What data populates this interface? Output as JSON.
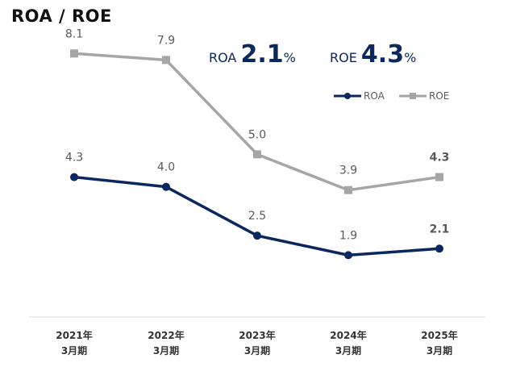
{
  "title": "ROA / ROE",
  "kpi": {
    "roa_label": "ROA",
    "roa_value": "2.1",
    "roe_label": "ROE",
    "roe_value": "4.3",
    "unit": "%"
  },
  "chart_data": {
    "type": "line",
    "categories": [
      [
        "2021年",
        "3月期"
      ],
      [
        "2022年",
        "3月期"
      ],
      [
        "2023年",
        "3月期"
      ],
      [
        "2024年",
        "3月期"
      ],
      [
        "2025年",
        "3月期"
      ]
    ],
    "series": [
      {
        "name": "ROA",
        "values": [
          4.3,
          4.0,
          2.5,
          1.9,
          2.1
        ],
        "labels": [
          "4.3",
          "4.0",
          "2.5",
          "1.9",
          "2.1"
        ],
        "color": "#0b2760",
        "marker": "circle"
      },
      {
        "name": "ROE",
        "values": [
          8.1,
          7.9,
          5.0,
          3.9,
          4.3
        ],
        "labels": [
          "8.1",
          "7.9",
          "5.0",
          "3.9",
          "4.3"
        ],
        "color": "#a6a6a6",
        "marker": "square"
      }
    ],
    "label_color": "#595959",
    "highlight_last_label": true,
    "ylim": [
      0,
      9
    ],
    "grid": false,
    "legend": "top-right",
    "xlabel": "",
    "ylabel": ""
  }
}
